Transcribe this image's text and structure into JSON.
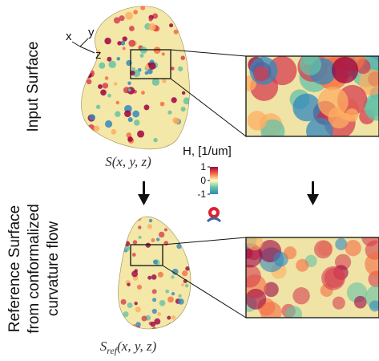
{
  "input_label": "Input Surface",
  "reference_label": [
    "Reference Surface",
    "from conformalized",
    "curvature flow"
  ],
  "axes_labels": {
    "x": "x",
    "y": "y",
    "z": "z"
  },
  "input_formula": "S(x, y, z)",
  "reference_formula": {
    "base": "S",
    "subscript": "ref",
    "args": "(x, y, z)"
  },
  "colorbar": {
    "label": "H, [1/um]",
    "lim": [
      -1,
      1
    ],
    "ticks": [
      1,
      0,
      -1
    ]
  }
}
